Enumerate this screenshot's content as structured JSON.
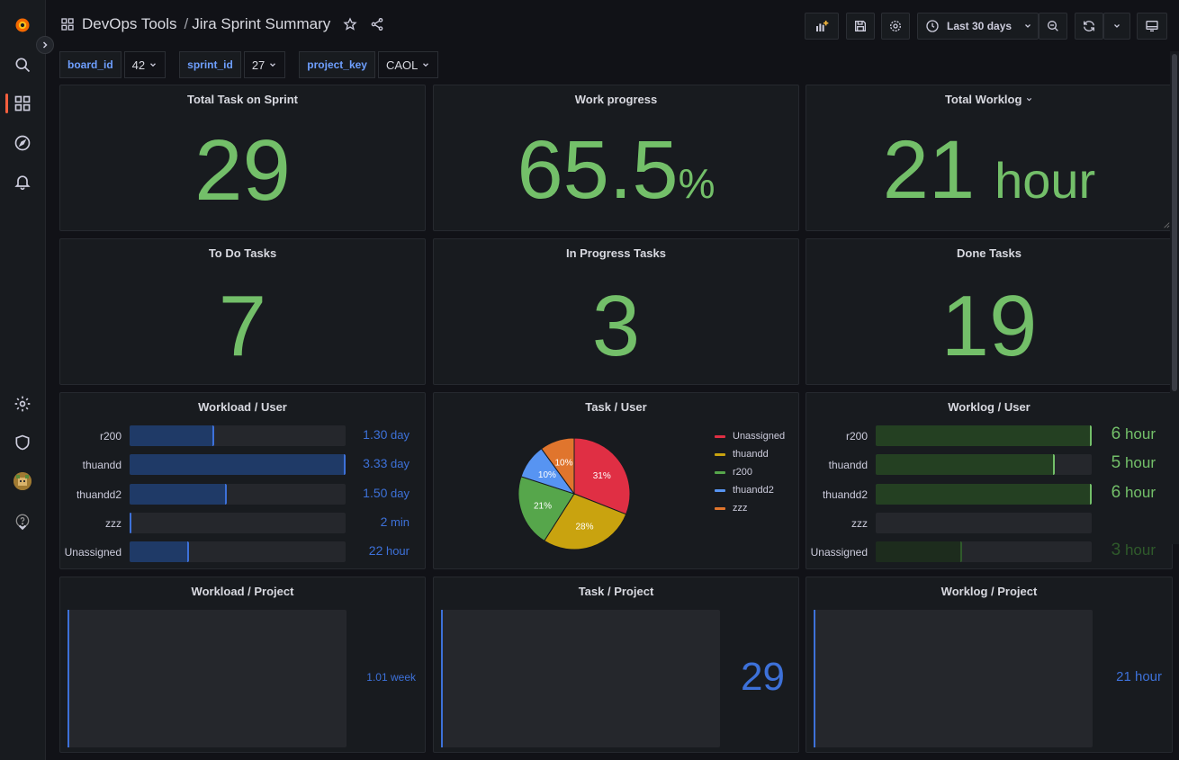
{
  "nav": {
    "icons": [
      "grafana-logo-icon",
      "search-icon",
      "dashboards-icon",
      "explore-icon",
      "alerting-icon",
      "settings-icon",
      "shield-icon",
      "user-avatar",
      "help-icon"
    ]
  },
  "header": {
    "folder": "DevOps Tools",
    "separator": "/",
    "dashboard_title": "Jira Sprint Summary",
    "time_range": "Last 30 days"
  },
  "variables": [
    {
      "label": "board_id",
      "value": "42"
    },
    {
      "label": "sprint_id",
      "value": "27"
    },
    {
      "label": "project_key",
      "value": "CAOL"
    }
  ],
  "stats": {
    "total_task": {
      "title": "Total Task on Sprint",
      "value": "29"
    },
    "work_progress": {
      "title": "Work progress",
      "value": "65.5",
      "unit": "%"
    },
    "total_worklog": {
      "title": "Total Worklog",
      "value": "21",
      "unit": "hour"
    },
    "todo": {
      "title": "To Do Tasks",
      "value": "7"
    },
    "in_progress": {
      "title": "In Progress Tasks",
      "value": "3"
    },
    "done": {
      "title": "Done Tasks",
      "value": "19"
    }
  },
  "workload_user": {
    "title": "Workload / User",
    "rows": [
      {
        "name": "r200",
        "value": "1.30",
        "unit": "day",
        "fill": 0.39
      },
      {
        "name": "thuandd",
        "value": "3.33",
        "unit": "day",
        "fill": 1.0
      },
      {
        "name": "thuandd2",
        "value": "1.50",
        "unit": "day",
        "fill": 0.45
      },
      {
        "name": "zzz",
        "value": "2",
        "unit": "min",
        "fill": 0.01
      },
      {
        "name": "Unassigned",
        "value": "22",
        "unit": "hour",
        "fill": 0.275
      }
    ]
  },
  "task_user": {
    "title": "Task / User",
    "chart_data": {
      "type": "pie",
      "title": "Task / User",
      "slices": [
        {
          "name": "Unassigned",
          "value": 31,
          "label": "31%",
          "color": "#e02f44"
        },
        {
          "name": "thuandd",
          "value": 28,
          "label": "28%",
          "color": "#c9a30f"
        },
        {
          "name": "r200",
          "value": 21,
          "label": "21%",
          "color": "#56a64b"
        },
        {
          "name": "thuandd2",
          "value": 10,
          "label": "10%",
          "color": "#5794f2"
        },
        {
          "name": "zzz",
          "value": 10,
          "label": "10%",
          "color": "#e0752d"
        }
      ],
      "legend_position": "right"
    }
  },
  "worklog_user": {
    "title": "Worklog / User",
    "rows": [
      {
        "name": "r200",
        "value": "6",
        "unit": "hour",
        "fill": 1.0,
        "color": "#73bf69"
      },
      {
        "name": "thuandd",
        "value": "5",
        "unit": "hour",
        "fill": 0.83,
        "color": "#73bf69"
      },
      {
        "name": "thuandd2",
        "value": "6",
        "unit": "hour",
        "fill": 1.0,
        "color": "#73bf69"
      },
      {
        "name": "zzz",
        "value": "",
        "unit": "",
        "fill": 0.0,
        "color": "#73bf69"
      },
      {
        "name": "Unassigned",
        "value": "3",
        "unit": "hour",
        "fill": 0.4,
        "color": "#2f5a2b"
      }
    ]
  },
  "projects": {
    "workload": {
      "title": "Workload / Project",
      "value": "1.01 week"
    },
    "task": {
      "title": "Task / Project",
      "value": "29"
    },
    "worklog": {
      "title": "Worklog / Project",
      "value": "21 hour"
    }
  }
}
